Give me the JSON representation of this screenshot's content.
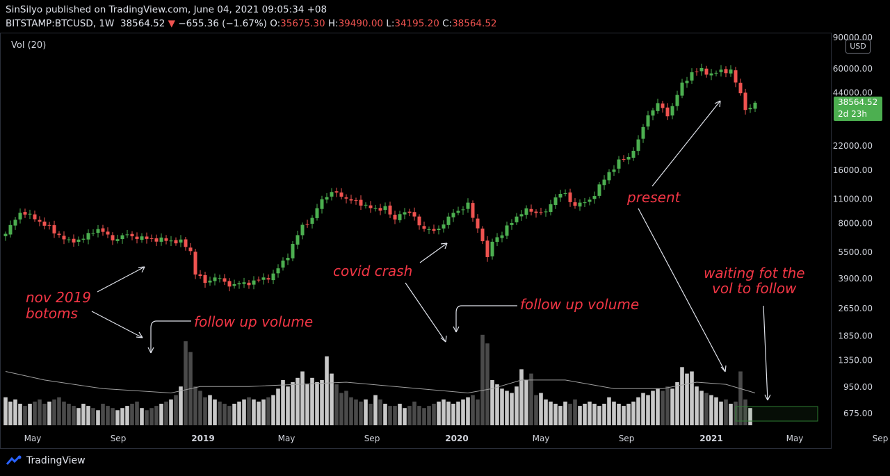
{
  "header": {
    "published": "SinSilyo published on TradingView.com, June 04, 2021 09:05:34 +08",
    "symbol": "BITSTAMP:BTCUSD, 1W",
    "last": "38564.52",
    "arrow": "▼",
    "change": "−655.36 (−1.67%)",
    "o_label": "O:",
    "o": "35675.30",
    "h_label": "H:",
    "h": "39490.00",
    "l_label": "L:",
    "l": "34195.20",
    "c_label": "C:",
    "c": "38564.52"
  },
  "vol_indicator": "Vol (20)",
  "currency_label": "USD",
  "price_tag": {
    "price": "38564.52",
    "countdown": "2d 23h"
  },
  "brand": "TradingView",
  "colors": {
    "up": "#4caf50",
    "down": "#ef5350",
    "annotation": "#f23645",
    "background": "#000000"
  },
  "annotations": [
    {
      "id": "nov-2019-bottoms",
      "lines": [
        "nov 2019",
        "botoms"
      ]
    },
    {
      "id": "follow-up-volume-1",
      "lines": [
        "follow up volume"
      ]
    },
    {
      "id": "covid-crash",
      "lines": [
        "covid crash"
      ]
    },
    {
      "id": "follow-up-volume-2",
      "lines": [
        "follow up volume"
      ]
    },
    {
      "id": "present",
      "lines": [
        "present"
      ]
    },
    {
      "id": "waiting",
      "lines": [
        "waiting fot the",
        "vol to follow"
      ]
    }
  ],
  "chart_data": {
    "type": "candlestick",
    "interval": "1W",
    "y_scale": "log",
    "y_ticks": [
      675,
      950,
      1350,
      1850,
      2650,
      3900,
      5500,
      8000,
      11000,
      16000,
      22000,
      44000,
      60000,
      90000
    ],
    "y_tick_labels": [
      "675.00",
      "950.00",
      "1350.00",
      "1850.00",
      "2650.00",
      "3900.00",
      "5500.00",
      "8000.00",
      "11000.00",
      "16000.00",
      "22000.00",
      "44000.00",
      "60000.00",
      "90000.00"
    ],
    "x_ticks": [
      {
        "label": "May",
        "date": "2018-05-01"
      },
      {
        "label": "Sep",
        "date": "2018-09-01"
      },
      {
        "label": "2019",
        "date": "2019-01-01"
      },
      {
        "label": "May",
        "date": "2019-05-01"
      },
      {
        "label": "Sep",
        "date": "2019-09-01"
      },
      {
        "label": "2020",
        "date": "2020-01-01"
      },
      {
        "label": "May",
        "date": "2020-05-01"
      },
      {
        "label": "Sep",
        "date": "2020-09-01"
      },
      {
        "label": "2021",
        "date": "2021-01-01"
      },
      {
        "label": "May",
        "date": "2021-05-01"
      },
      {
        "label": "Sep",
        "date": "2021-09-01"
      }
    ],
    "start_date": "2018-04-16",
    "price_keypoints": [
      [
        0,
        7000
      ],
      [
        3,
        9300
      ],
      [
        6,
        8600
      ],
      [
        10,
        7200
      ],
      [
        13,
        6300
      ],
      [
        16,
        6600
      ],
      [
        19,
        7500
      ],
      [
        22,
        6500
      ],
      [
        25,
        6900
      ],
      [
        28,
        6600
      ],
      [
        31,
        6500
      ],
      [
        34,
        6400
      ],
      [
        36,
        6300
      ],
      [
        38,
        5600
      ],
      [
        39,
        4200
      ],
      [
        41,
        3700
      ],
      [
        43,
        4000
      ],
      [
        46,
        3600
      ],
      [
        50,
        3700
      ],
      [
        53,
        3900
      ],
      [
        55,
        4100
      ],
      [
        58,
        5300
      ],
      [
        61,
        7800
      ],
      [
        63,
        8500
      ],
      [
        65,
        11000
      ],
      [
        67,
        12000
      ],
      [
        69,
        11500
      ],
      [
        72,
        10500
      ],
      [
        74,
        10200
      ],
      [
        76,
        9500
      ],
      [
        78,
        10000
      ],
      [
        80,
        8200
      ],
      [
        81,
        9300
      ],
      [
        83,
        9200
      ],
      [
        85,
        8000
      ],
      [
        86,
        7500
      ],
      [
        88,
        7200
      ],
      [
        90,
        8000
      ],
      [
        92,
        9200
      ],
      [
        94,
        9800
      ],
      [
        95,
        10200
      ],
      [
        96,
        8700
      ],
      [
        98,
        6500
      ],
      [
        99,
        5000
      ],
      [
        100,
        6400
      ],
      [
        102,
        7000
      ],
      [
        105,
        8800
      ],
      [
        107,
        9500
      ],
      [
        109,
        9300
      ],
      [
        111,
        9200
      ],
      [
        113,
        11500
      ],
      [
        115,
        11800
      ],
      [
        116,
        10500
      ],
      [
        118,
        10300
      ],
      [
        120,
        10800
      ],
      [
        122,
        13000
      ],
      [
        124,
        15500
      ],
      [
        126,
        18000
      ],
      [
        128,
        19000
      ],
      [
        130,
        23500
      ],
      [
        132,
        33000
      ],
      [
        134,
        38000
      ],
      [
        136,
        33000
      ],
      [
        137,
        37000
      ],
      [
        139,
        49000
      ],
      [
        141,
        57000
      ],
      [
        143,
        59000
      ],
      [
        145,
        56000
      ],
      [
        147,
        58000
      ],
      [
        149,
        59000
      ],
      [
        150,
        50000
      ],
      [
        151,
        43000
      ],
      [
        152,
        36000
      ],
      [
        153,
        36000
      ],
      [
        154,
        38564.52
      ]
    ],
    "last_candle": {
      "open": 35675.3,
      "high": 39490.0,
      "low": 34195.2,
      "close": 38564.52
    },
    "volume": {
      "base": [
        0.65,
        0.55,
        0.6,
        0.5,
        0.45,
        0.5,
        0.55,
        0.6,
        0.5,
        0.55,
        0.6,
        0.65,
        0.55,
        0.5,
        0.45,
        0.4,
        0.5,
        0.45,
        0.4,
        0.35,
        0.5,
        0.45,
        0.4,
        0.35,
        0.4,
        0.45,
        0.5,
        0.55,
        0.4,
        0.35,
        0.4,
        0.45,
        0.5,
        0.55,
        0.6,
        0.7,
        0.9,
        1.95,
        1.7,
        0.9,
        0.8,
        0.65,
        0.7,
        0.6,
        0.55,
        0.5,
        0.45,
        0.5,
        0.55,
        0.6,
        0.65,
        0.6,
        0.55,
        0.6,
        0.65,
        0.7,
        0.85,
        1.05,
        0.9,
        1.0,
        1.1,
        1.25,
        0.95,
        1.1,
        1.0,
        1.05,
        1.6,
        1.2,
        0.95,
        0.75,
        0.8,
        0.65,
        0.6,
        0.55,
        0.6,
        0.5,
        0.7,
        0.6,
        0.5,
        0.45,
        0.45,
        0.5,
        0.4,
        0.45,
        0.55,
        0.45,
        0.4,
        0.45,
        0.5,
        0.55,
        0.6,
        0.55,
        0.5,
        0.55,
        0.6,
        0.65,
        0.7,
        0.6,
        2.1,
        1.9,
        1.05,
        0.95,
        0.85,
        0.8,
        0.75,
        0.9,
        1.3,
        1.05,
        1.2,
        0.7,
        0.75,
        0.6,
        0.55,
        0.5,
        0.45,
        0.55,
        0.5,
        0.6,
        0.45,
        0.5,
        0.55,
        0.5,
        0.45,
        0.5,
        0.65,
        0.55,
        0.5,
        0.45,
        0.5,
        0.55,
        0.65,
        0.75,
        0.7,
        0.8,
        0.85,
        0.8,
        0.9,
        0.85,
        1.0,
        1.35,
        1.2,
        1.25,
        0.9,
        0.8,
        0.75,
        0.7,
        0.65,
        0.55,
        0.6,
        0.5,
        0.55,
        1.25,
        0.6,
        0.4
      ],
      "ma_keypoints": [
        [
          0,
          1.25
        ],
        [
          8,
          1.05
        ],
        [
          20,
          0.85
        ],
        [
          34,
          0.75
        ],
        [
          40,
          0.9
        ],
        [
          50,
          0.9
        ],
        [
          60,
          0.95
        ],
        [
          70,
          1.0
        ],
        [
          80,
          0.9
        ],
        [
          95,
          0.75
        ],
        [
          100,
          0.85
        ],
        [
          106,
          1.05
        ],
        [
          115,
          1.05
        ],
        [
          125,
          0.85
        ],
        [
          135,
          0.85
        ],
        [
          142,
          1.0
        ],
        [
          148,
          0.95
        ],
        [
          154,
          0.75
        ]
      ]
    }
  }
}
